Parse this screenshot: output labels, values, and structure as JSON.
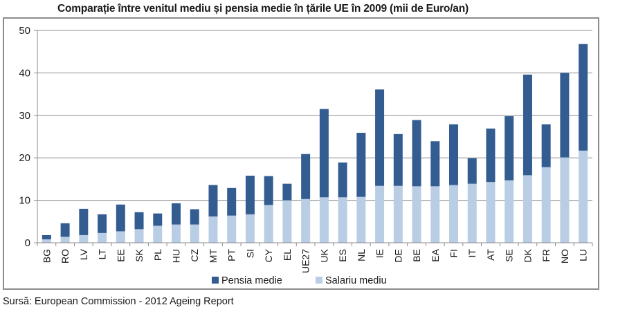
{
  "chart_data": {
    "type": "bar",
    "stacked": true,
    "title": "Comparație între venitul mediu și pensia medie în țările UE în 2009 (mii de Euro/an)",
    "xlabel": "",
    "ylabel": "",
    "ylim": [
      0,
      50
    ],
    "yticks": [
      "0",
      "10",
      "20",
      "30",
      "40",
      "50"
    ],
    "grid": true,
    "legend_position": "bottom",
    "categories": [
      "BG",
      "RO",
      "LV",
      "LT",
      "EE",
      "SK",
      "PL",
      "HU",
      "CZ",
      "MT",
      "PT",
      "SI",
      "CY",
      "EL",
      "UE27",
      "UK",
      "ES",
      "NL",
      "IE",
      "DE",
      "BE",
      "EA",
      "FI",
      "IT",
      "AT",
      "SE",
      "DK",
      "FR",
      "NO",
      "LU"
    ],
    "series": [
      {
        "name": "Salariu mediu",
        "color": "#b9cde5",
        "values": [
          0.8,
          1.4,
          1.8,
          2.3,
          2.7,
          3.2,
          4.0,
          4.3,
          4.3,
          6.2,
          6.4,
          6.7,
          8.9,
          10.0,
          10.3,
          10.7,
          10.7,
          10.8,
          13.4,
          13.4,
          13.3,
          13.3,
          13.6,
          13.9,
          14.3,
          14.7,
          15.9,
          17.8,
          20.1,
          21.7
        ]
      },
      {
        "name": "Pensia medie",
        "color": "#335c91",
        "values": [
          1.0,
          3.2,
          6.2,
          4.4,
          6.3,
          4.0,
          2.9,
          5.0,
          3.6,
          7.4,
          6.5,
          9.1,
          6.8,
          3.9,
          10.6,
          20.8,
          8.2,
          15.1,
          22.7,
          12.2,
          15.6,
          10.6,
          14.3,
          6.0,
          12.6,
          15.1,
          23.7,
          10.1,
          19.9,
          25.1
        ]
      }
    ],
    "totals": [
      1.8,
      4.6,
      8.0,
      6.7,
      9.0,
      7.2,
      6.9,
      9.3,
      7.9,
      13.6,
      12.9,
      15.8,
      15.7,
      13.9,
      20.9,
      31.5,
      18.9,
      25.9,
      36.1,
      25.6,
      28.9,
      23.9,
      27.9,
      19.9,
      26.9,
      29.8,
      39.6,
      27.9,
      40.0,
      46.8
    ],
    "legend": [
      "Pensia medie",
      "Salariu mediu"
    ]
  },
  "source": "Sursă: European Commission - 2012 Ageing Report"
}
